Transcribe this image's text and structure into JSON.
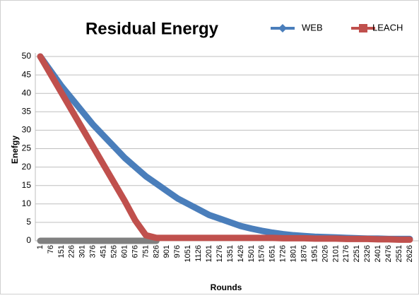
{
  "chart_data": {
    "type": "line",
    "title": "Residual Energy",
    "x_label": "Rounds",
    "y_label": "Enefgy",
    "categories": [
      "1",
      "76",
      "151",
      "226",
      "301",
      "376",
      "451",
      "526",
      "601",
      "676",
      "751",
      "826",
      "901",
      "976",
      "1051",
      "1126",
      "1201",
      "1276",
      "1351",
      "1426",
      "1501",
      "1576",
      "1651",
      "1726",
      "1801",
      "1876",
      "1951",
      "2026",
      "2101",
      "2176",
      "2251",
      "2326",
      "2401",
      "2476",
      "2551",
      "2626"
    ],
    "series": [
      {
        "name": "WEB",
        "color": "#4a7ebb",
        "values": [
          50,
          46,
          42,
          38.5,
          35,
          31.5,
          28.5,
          25.5,
          22.5,
          20,
          17.5,
          15.5,
          13.5,
          11.5,
          10,
          8.5,
          7,
          6,
          5,
          4,
          3.3,
          2.7,
          2.2,
          1.8,
          1.5,
          1.3,
          1.1,
          1,
          0.9,
          0.8,
          0.7,
          0.6,
          0.6,
          0.5,
          0.5,
          0.5
        ]
      },
      {
        "name": "LEACH",
        "color": "#c0504d",
        "values": [
          50,
          45.1,
          40.2,
          35.3,
          30.4,
          25.5,
          20.6,
          15.7,
          10.8,
          5.5,
          1.5,
          0.8,
          0.8,
          0.8,
          0.8,
          0.8,
          0.8,
          0.8,
          0.8,
          0.8,
          0.8,
          0.8,
          0.8,
          0.7,
          0.7,
          0.7,
          0.6,
          0.6,
          0.6,
          0.5,
          0.5,
          0.5,
          0.4,
          0.4,
          0.3,
          0.3
        ]
      },
      {
        "color": "#808080",
        "values": [
          0,
          0,
          0,
          0,
          0,
          0,
          0,
          0,
          0,
          0,
          0,
          0,
          null,
          null,
          null,
          null,
          null,
          null,
          null,
          null,
          null,
          null,
          null,
          null,
          null,
          null,
          null,
          null,
          null,
          null,
          null,
          null,
          null,
          null,
          null,
          null
        ]
      }
    ],
    "ylim": [
      0,
      50
    ],
    "yticks": [
      0,
      5,
      10,
      15,
      20,
      25,
      30,
      35,
      40,
      45,
      50
    ],
    "grid": true,
    "legend": "top"
  }
}
